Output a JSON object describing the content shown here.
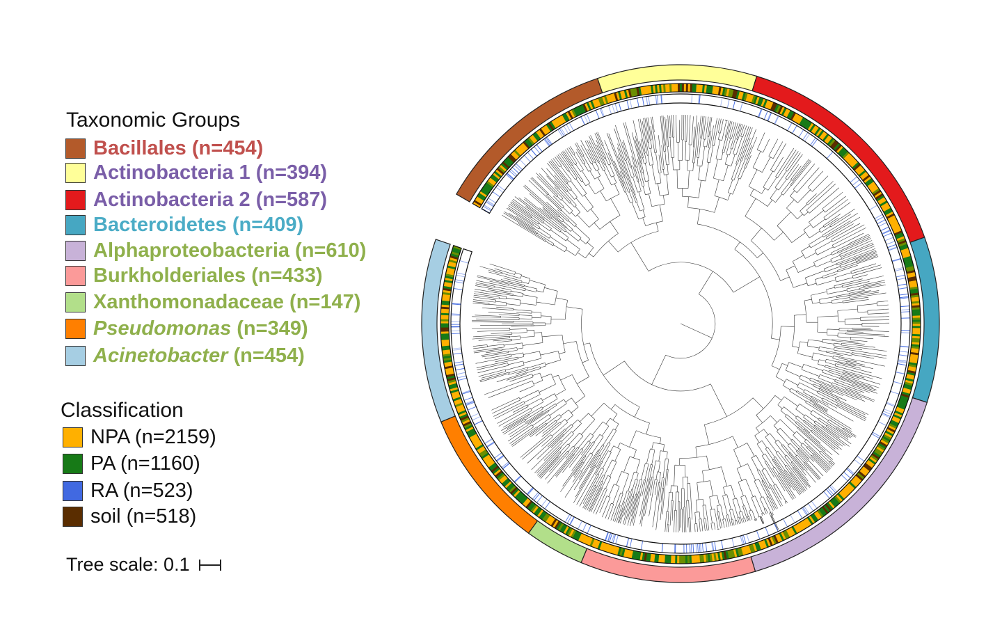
{
  "legend_taxonomic": {
    "title": "Taxonomic Groups",
    "items": [
      {
        "name": "Bacillales",
        "count": " (n=454)",
        "italic": false,
        "swatch": "#b35a2a",
        "text_color": "#c0504d",
        "n": 454
      },
      {
        "name": "Actinobacteria 1",
        "count": " (n=394)",
        "italic": false,
        "swatch": "#ffff99",
        "text_color": "#7a5ea8",
        "n": 394
      },
      {
        "name": "Actinobacteria 2",
        "count": " (n=587)",
        "italic": false,
        "swatch": "#e31a1c",
        "text_color": "#7a5ea8",
        "n": 587
      },
      {
        "name": "Bacteroidetes",
        "count": " (n=409)",
        "italic": false,
        "swatch": "#46a7c2",
        "text_color": "#4bacc6",
        "n": 409
      },
      {
        "name": "Alphaproteobacteria",
        "count": " (n=610)",
        "italic": false,
        "swatch": "#c8b2d8",
        "text_color": "#8fb04c",
        "n": 610
      },
      {
        "name": "Burkholderiales",
        "count": " (n=433)",
        "italic": false,
        "swatch": "#fb9a99",
        "text_color": "#8fb04c",
        "n": 433
      },
      {
        "name": "Xanthomonadaceae",
        "count": " (n=147)",
        "italic": false,
        "swatch": "#b2df8a",
        "text_color": "#8fb04c",
        "n": 147
      },
      {
        "name": "Pseudomonas",
        "count": " (n=349)",
        "italic": true,
        "swatch": "#ff7f00",
        "text_color": "#8fb04c",
        "n": 349
      },
      {
        "name": "Acinetobacter",
        "count": " (n=454)",
        "italic": true,
        "swatch": "#a6cee3",
        "text_color": "#8fb04c",
        "n": 454
      }
    ]
  },
  "legend_classification": {
    "title": "Classification",
    "items": [
      {
        "label": "NPA (n=2159)",
        "swatch": "#ffb000",
        "n": 2159
      },
      {
        "label": "PA (n=1160)",
        "swatch": "#177a17",
        "n": 1160
      },
      {
        "label": "RA (n=523)",
        "swatch": "#4169e1",
        "n": 523
      },
      {
        "label": "soil (n=518)",
        "swatch": "#5a2d00",
        "n": 518
      }
    ]
  },
  "tree_scale": {
    "label": "Tree scale: 0.1"
  }
}
